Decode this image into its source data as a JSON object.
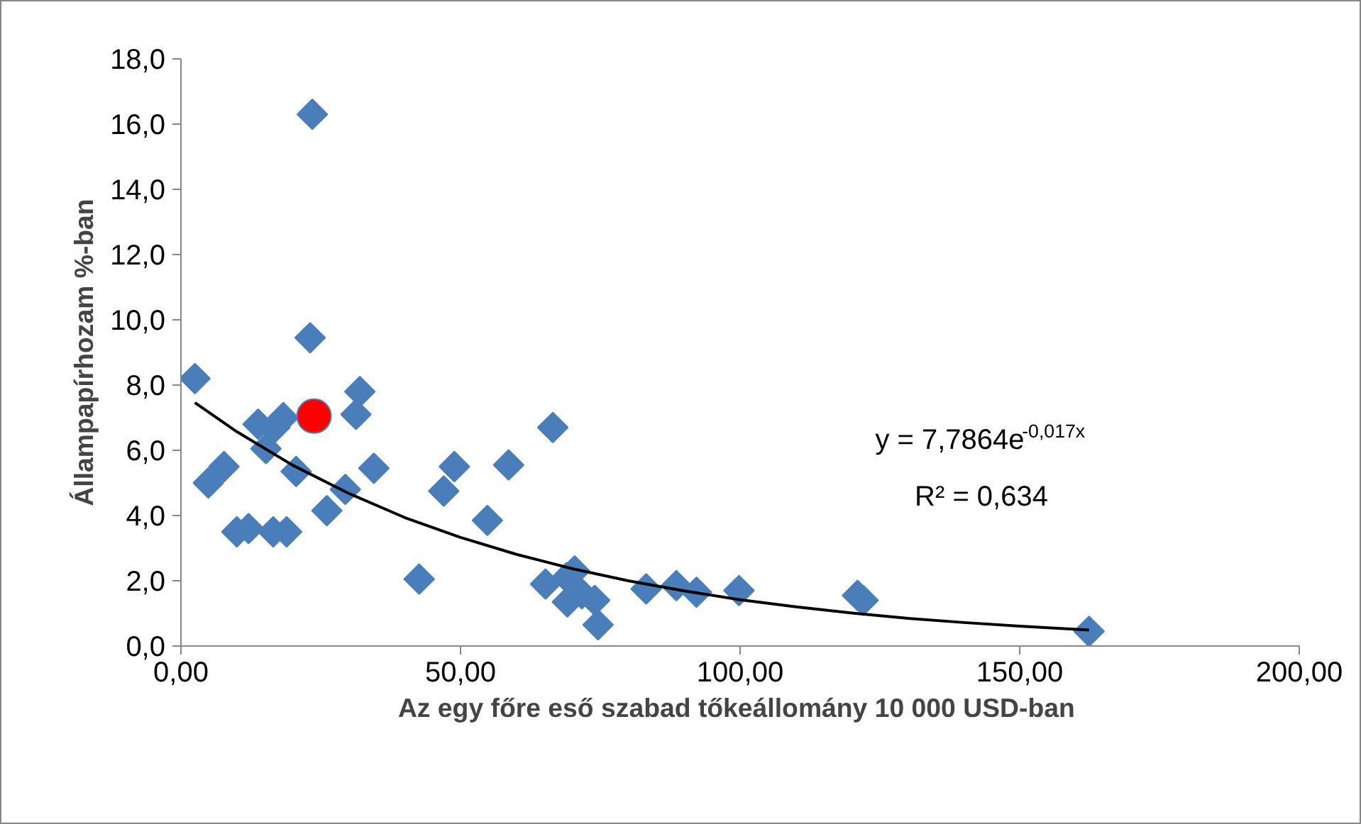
{
  "chart_data": {
    "type": "scatter",
    "xlabel": "Az egy főre eső szabad tőkeállomány 10 000  USD-ban",
    "ylabel": "Állampapírhozam %-ban",
    "annotations": [
      "y = 7,7864e$^{-0,017x}$",
      "R² = 0,634"
    ],
    "xlim": [
      0,
      200
    ],
    "ylim": [
      0,
      18
    ],
    "xticks": [
      {
        "value": 0,
        "label": "0,00"
      },
      {
        "value": 50,
        "label": "50,00"
      },
      {
        "value": 100,
        "label": "100,00"
      },
      {
        "value": 150,
        "label": "150,00"
      },
      {
        "value": 200,
        "label": "200,00"
      }
    ],
    "yticks": [
      {
        "value": 0,
        "label": "0,0"
      },
      {
        "value": 2,
        "label": "2,0"
      },
      {
        "value": 4,
        "label": "4,0"
      },
      {
        "value": 6,
        "label": "6,0"
      },
      {
        "value": 8,
        "label": "8,0"
      },
      {
        "value": 10,
        "label": "10,0"
      },
      {
        "value": 12,
        "label": "12,0"
      },
      {
        "value": 14,
        "label": "14,0"
      },
      {
        "value": 16,
        "label": "16,0"
      },
      {
        "value": 18,
        "label": "18,0"
      }
    ],
    "grid": false,
    "series": [
      {
        "marker": "diamond",
        "color": "#4a7ebb",
        "x": [
          2.5,
          23.5,
          23.1,
          32,
          31.3,
          13.8,
          18.3,
          16.8,
          15.2,
          7.7,
          4.9,
          20.6,
          34.5,
          29.4,
          26.1,
          10,
          12.1,
          16.5,
          18.9,
          42.6,
          47,
          48.9,
          54.8,
          58.6,
          66.5,
          65.2,
          70.4,
          69,
          69.1,
          71.7,
          74,
          74.6,
          83.2,
          88.6,
          92.2,
          99.8,
          121,
          122,
          162.4
        ],
        "values": [
          8.2,
          16.3,
          9.45,
          7.8,
          7.1,
          6.8,
          7.0,
          6.7,
          6.05,
          5.5,
          5.0,
          5.35,
          5.45,
          4.8,
          4.15,
          3.5,
          3.6,
          3.5,
          3.5,
          2.05,
          4.75,
          5.5,
          3.85,
          5.55,
          6.7,
          1.9,
          2.3,
          2.1,
          1.35,
          1.6,
          1.4,
          0.65,
          1.75,
          1.85,
          1.65,
          1.7,
          1.55,
          1.4,
          0.45
        ]
      },
      {
        "marker": "circle",
        "color": "#ff0000",
        "x": [
          23.8
        ],
        "values": [
          7.05
        ]
      },
      {
        "type": "line",
        "line_style": "solid",
        "color": "#000000",
        "x": [
          2.5,
          10,
          20,
          30,
          40,
          50,
          60,
          70,
          80,
          90,
          100,
          110,
          120,
          130,
          140,
          150,
          162.4
        ],
        "values": [
          7.46,
          6.57,
          5.54,
          4.68,
          3.94,
          3.33,
          2.81,
          2.37,
          2.0,
          1.69,
          1.42,
          1.2,
          1.01,
          0.85,
          0.72,
          0.61,
          0.49
        ]
      }
    ]
  }
}
